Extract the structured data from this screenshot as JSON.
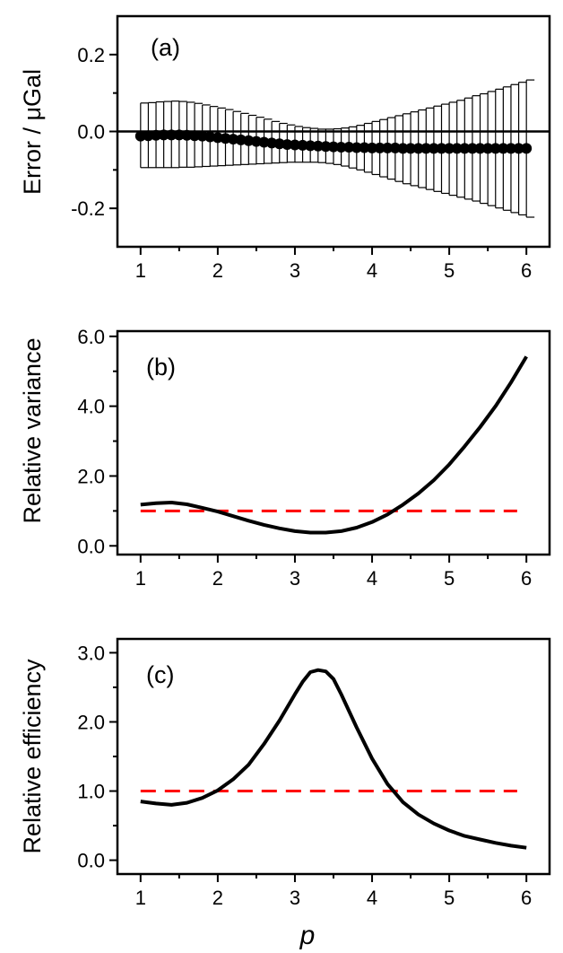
{
  "chart_data": [
    {
      "type": "scatter",
      "panel_label": "(a)",
      "ylabel": "Error / μGal",
      "ylim": [
        -0.3,
        0.3
      ],
      "xlim": [
        0.7,
        6.3
      ],
      "xticks": [
        "1",
        "2",
        "3",
        "4",
        "5",
        "6"
      ],
      "yticks": [
        "0.2",
        "0.0",
        "-0.2"
      ],
      "reference_line": 0.0,
      "series": [
        {
          "name": "error",
          "x": [
            1.0,
            1.1,
            1.2,
            1.3,
            1.4,
            1.5,
            1.6,
            1.7,
            1.8,
            1.9,
            2.0,
            2.1,
            2.2,
            2.3,
            2.4,
            2.5,
            2.6,
            2.7,
            2.8,
            2.9,
            3.0,
            3.1,
            3.2,
            3.3,
            3.4,
            3.5,
            3.6,
            3.7,
            3.8,
            3.9,
            4.0,
            4.1,
            4.2,
            4.3,
            4.4,
            4.5,
            4.6,
            4.7,
            4.8,
            4.9,
            5.0,
            5.1,
            5.2,
            5.3,
            5.4,
            5.5,
            5.6,
            5.7,
            5.8,
            5.9,
            6.0
          ],
          "y": [
            -0.012,
            -0.011,
            -0.01,
            -0.009,
            -0.009,
            -0.009,
            -0.01,
            -0.011,
            -0.012,
            -0.014,
            -0.016,
            -0.018,
            -0.02,
            -0.022,
            -0.024,
            -0.026,
            -0.028,
            -0.03,
            -0.032,
            -0.034,
            -0.035,
            -0.036,
            -0.037,
            -0.038,
            -0.039,
            -0.04,
            -0.041,
            -0.041,
            -0.042,
            -0.042,
            -0.043,
            -0.043,
            -0.043,
            -0.043,
            -0.044,
            -0.044,
            -0.044,
            -0.044,
            -0.044,
            -0.044,
            -0.044,
            -0.044,
            -0.044,
            -0.044,
            -0.044,
            -0.044,
            -0.044,
            -0.044,
            -0.044,
            -0.044,
            -0.044
          ],
          "error_high": [
            0.074,
            0.075,
            0.077,
            0.078,
            0.079,
            0.078,
            0.076,
            0.073,
            0.069,
            0.065,
            0.061,
            0.057,
            0.052,
            0.047,
            0.042,
            0.037,
            0.032,
            0.026,
            0.021,
            0.017,
            0.013,
            0.01,
            0.008,
            0.006,
            0.006,
            0.007,
            0.009,
            0.012,
            0.016,
            0.021,
            0.026,
            0.031,
            0.036,
            0.041,
            0.046,
            0.051,
            0.056,
            0.061,
            0.066,
            0.071,
            0.076,
            0.081,
            0.087,
            0.093,
            0.098,
            0.104,
            0.11,
            0.116,
            0.122,
            0.128,
            0.134
          ],
          "error_low": [
            -0.094,
            -0.094,
            -0.094,
            -0.094,
            -0.094,
            -0.093,
            -0.093,
            -0.092,
            -0.091,
            -0.09,
            -0.089,
            -0.088,
            -0.087,
            -0.086,
            -0.085,
            -0.084,
            -0.083,
            -0.082,
            -0.081,
            -0.08,
            -0.08,
            -0.08,
            -0.08,
            -0.081,
            -0.083,
            -0.086,
            -0.09,
            -0.095,
            -0.1,
            -0.106,
            -0.112,
            -0.118,
            -0.124,
            -0.13,
            -0.136,
            -0.141,
            -0.146,
            -0.151,
            -0.156,
            -0.161,
            -0.166,
            -0.171,
            -0.176,
            -0.181,
            -0.187,
            -0.193,
            -0.199,
            -0.205,
            -0.211,
            -0.217,
            -0.223
          ]
        }
      ]
    },
    {
      "type": "line",
      "panel_label": "(b)",
      "ylabel": "Relative variance",
      "ylim": [
        -0.25,
        6.15
      ],
      "xlim": [
        0.7,
        6.3
      ],
      "xticks": [
        "1",
        "2",
        "3",
        "4",
        "5",
        "6"
      ],
      "yticks": [
        "6.0",
        "4.0",
        "2.0",
        "0.0"
      ],
      "reference_line": {
        "y": 1.0,
        "x_range": [
          1.0,
          5.88
        ],
        "color": "#ff0000",
        "style": "dashed"
      },
      "series": [
        {
          "name": "relative variance",
          "x": [
            1.0,
            1.2,
            1.4,
            1.6,
            1.8,
            2.0,
            2.2,
            2.4,
            2.6,
            2.8,
            3.0,
            3.2,
            3.4,
            3.6,
            3.8,
            4.0,
            4.2,
            4.4,
            4.6,
            4.8,
            5.0,
            5.2,
            5.4,
            5.6,
            5.8,
            6.0
          ],
          "y": [
            1.18,
            1.22,
            1.24,
            1.19,
            1.09,
            0.98,
            0.85,
            0.72,
            0.6,
            0.5,
            0.42,
            0.38,
            0.38,
            0.42,
            0.52,
            0.68,
            0.9,
            1.18,
            1.5,
            1.88,
            2.33,
            2.85,
            3.4,
            4.0,
            4.68,
            5.42
          ]
        }
      ]
    },
    {
      "type": "line",
      "panel_label": "(c)",
      "ylabel": "Relative efficiency",
      "ylim": [
        -0.2,
        3.2
      ],
      "xlim": [
        0.7,
        6.3
      ],
      "xticks": [
        "1",
        "2",
        "3",
        "4",
        "5",
        "6"
      ],
      "yticks": [
        "3.0",
        "2.0",
        "1.0",
        "0.0"
      ],
      "reference_line": {
        "y": 1.0,
        "x_range": [
          1.0,
          5.88
        ],
        "color": "#ff0000",
        "style": "dashed"
      },
      "series": [
        {
          "name": "relative efficiency",
          "x": [
            1.0,
            1.2,
            1.4,
            1.6,
            1.8,
            2.0,
            2.2,
            2.4,
            2.6,
            2.8,
            3.0,
            3.1,
            3.2,
            3.3,
            3.4,
            3.5,
            3.6,
            3.8,
            4.0,
            4.2,
            4.4,
            4.6,
            4.8,
            5.0,
            5.2,
            5.4,
            5.6,
            5.8,
            6.0
          ],
          "y": [
            0.85,
            0.82,
            0.8,
            0.83,
            0.9,
            1.01,
            1.17,
            1.38,
            1.68,
            2.02,
            2.4,
            2.58,
            2.72,
            2.75,
            2.73,
            2.62,
            2.4,
            1.92,
            1.47,
            1.1,
            0.84,
            0.66,
            0.53,
            0.43,
            0.35,
            0.3,
            0.25,
            0.21,
            0.18
          ]
        }
      ]
    }
  ],
  "shared_xlabel": "p"
}
